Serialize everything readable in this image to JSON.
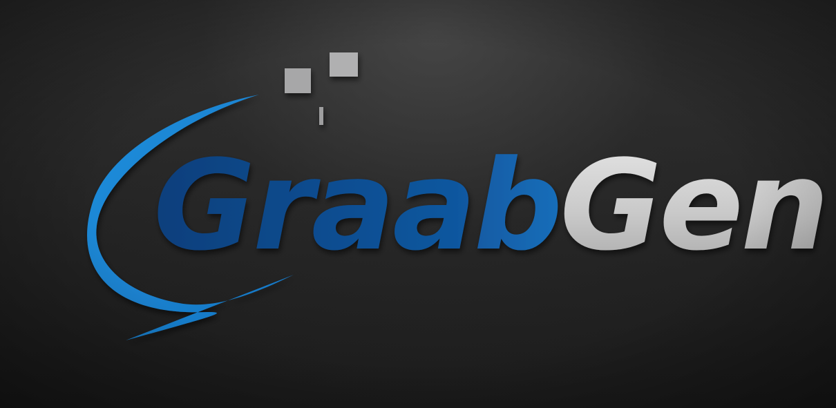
{
  "logo": {
    "name_part_1": "Graab",
    "name_part_2": "Gen",
    "colors": {
      "background": "#232323",
      "swoosh": "#1f8ad6",
      "dark_blue": "#0d4a8f",
      "light_blue": "#1e93e0",
      "gray_text": "#c8c8c8",
      "pixel_squares": "#a9a9aa"
    },
    "icons": [
      "swoosh-icon",
      "pixel-squares-icon"
    ]
  }
}
